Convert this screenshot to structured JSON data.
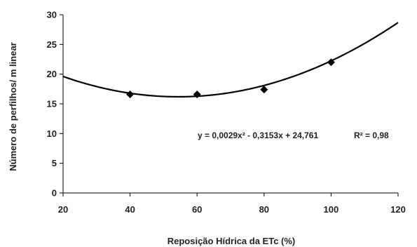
{
  "chart_data": {
    "type": "scatter",
    "xlabel": "Reposição Hídrica da ETc (%)",
    "ylabel": "Número de perfilhos/ m linear",
    "xlim": [
      20,
      120
    ],
    "ylim": [
      0,
      30
    ],
    "x_ticks": [
      "20",
      "40",
      "60",
      "80",
      "100",
      "120"
    ],
    "y_ticks": [
      "0",
      "5",
      "10",
      "15",
      "20",
      "25",
      "30"
    ],
    "grid": false,
    "series": [
      {
        "x": [
          40,
          60,
          80,
          100
        ],
        "y": [
          16.6,
          16.6,
          17.4,
          22.0
        ],
        "marker": "diamond",
        "color": "#000000"
      }
    ],
    "trendline": {
      "type": "polynomial",
      "coefficients": [
        0.0029,
        -0.3153,
        24.761
      ],
      "equation": "y = 0,0029x² - 0,3153x + 24,761",
      "r_squared": "R² = 0,98",
      "color": "#000000"
    }
  }
}
